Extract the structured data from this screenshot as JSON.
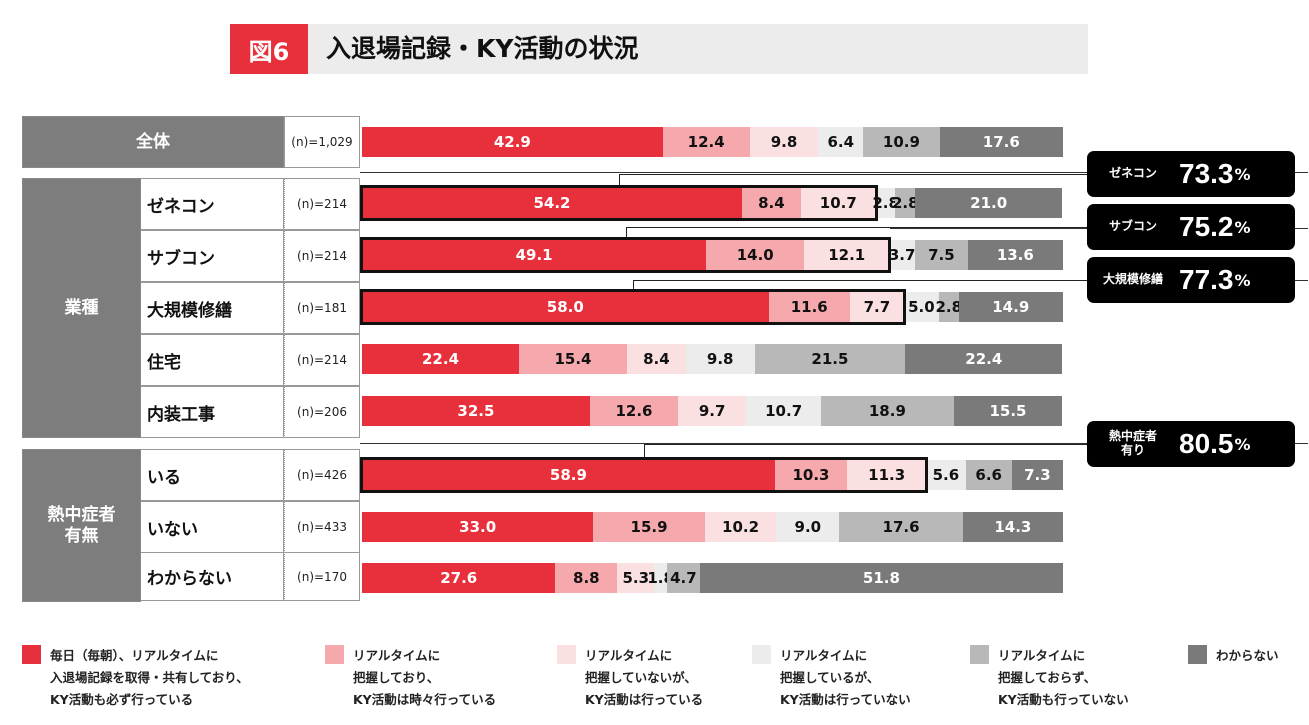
{
  "title": {
    "badge": "図6",
    "text": "入退場記録・KY活動の状況"
  },
  "colors": [
    "#e8303c",
    "#f6a9ad",
    "#fbe0e2",
    "#ececec",
    "#b8b8b8",
    "#7a7a7a"
  ],
  "label_colors": [
    "#ffffff",
    "#111111",
    "#111111",
    "#111111",
    "#111111",
    "#ffffff"
  ],
  "groups": [
    {
      "label": "全体"
    },
    {
      "label": "業種"
    },
    {
      "label": "熱中症者\n有無"
    }
  ],
  "chart_data": {
    "type": "bar",
    "orientation": "horizontal",
    "stacked": true,
    "title": "入退場記録・KY活動の状況",
    "xlim": [
      0,
      100
    ],
    "unit": "%",
    "legend_position": "bottom",
    "series": [
      {
        "name": "毎日（毎朝）、リアルタイムに入退場記録を取得・共有しており、KY活動も必ず行っている"
      },
      {
        "name": "リアルタイムに把握しており、KY活動は時々行っている"
      },
      {
        "name": "リアルタイムに把握していないが、KY活動は行っている"
      },
      {
        "name": "リアルタイムに把握しているが、KY活動は行っていない"
      },
      {
        "name": "リアルタイムに把握しておらず、KY活動も行っていない"
      },
      {
        "name": "わからない"
      }
    ],
    "rows": [
      {
        "group": "全体",
        "label": "",
        "n": "(n)=1,029",
        "values": [
          42.9,
          12.4,
          9.8,
          6.4,
          10.9,
          17.6
        ],
        "highlight": false
      },
      {
        "group": "業種",
        "label": "ゼネコン",
        "n": "(n)=214",
        "values": [
          54.2,
          8.4,
          10.7,
          2.8,
          2.8,
          21.0
        ],
        "highlight": true
      },
      {
        "group": "業種",
        "label": "サブコン",
        "n": "(n)=214",
        "values": [
          49.1,
          14.0,
          12.1,
          3.7,
          7.5,
          13.6
        ],
        "highlight": true
      },
      {
        "group": "業種",
        "label": "大規模修繕",
        "n": "(n)=181",
        "values": [
          58.0,
          11.6,
          7.7,
          5.0,
          2.8,
          14.9
        ],
        "highlight": true
      },
      {
        "group": "業種",
        "label": "住宅",
        "n": "(n)=214",
        "values": [
          22.4,
          15.4,
          8.4,
          9.8,
          21.5,
          22.4
        ],
        "highlight": false
      },
      {
        "group": "業種",
        "label": "内装工事",
        "n": "(n)=206",
        "values": [
          32.5,
          12.6,
          9.7,
          10.7,
          18.9,
          15.5
        ],
        "highlight": false
      },
      {
        "group": "熱中症者有無",
        "label": "いる",
        "n": "(n)=426",
        "values": [
          58.9,
          10.3,
          11.3,
          5.6,
          6.6,
          7.3
        ],
        "highlight": true
      },
      {
        "group": "熱中症者有無",
        "label": "いない",
        "n": "(n)=433",
        "values": [
          33.0,
          15.9,
          10.2,
          9.0,
          17.6,
          14.3
        ],
        "highlight": false
      },
      {
        "group": "熱中症者有無",
        "label": "わからない",
        "n": "(n)=170",
        "values": [
          27.6,
          8.8,
          5.3,
          1.8,
          4.7,
          51.8
        ],
        "highlight": false
      }
    ],
    "annotations": [
      {
        "row": 1,
        "label": "ゼネコン",
        "value": "73.3",
        "unit": "%"
      },
      {
        "row": 2,
        "label": "サブコン",
        "value": "75.2",
        "unit": "%"
      },
      {
        "row": 3,
        "label": "大規模修繕",
        "value": "77.3",
        "unit": "%"
      },
      {
        "row": 6,
        "label": "熱中症者\n有り",
        "value": "80.5",
        "unit": "%"
      }
    ]
  },
  "legend": [
    "毎日（毎朝）、リアルタイムに\n入退場記録を取得・共有しており、\nKY活動も必ず行っている",
    "リアルタイムに\n把握しており、\nKY活動は時々行っている",
    "リアルタイムに\n把握していないが、\nKY活動は行っている",
    "リアルタイムに\n把握しているが、\nKY活動は行っていない",
    "リアルタイムに\n把握しておらず、\nKY活動も行っていない",
    "わからない"
  ]
}
